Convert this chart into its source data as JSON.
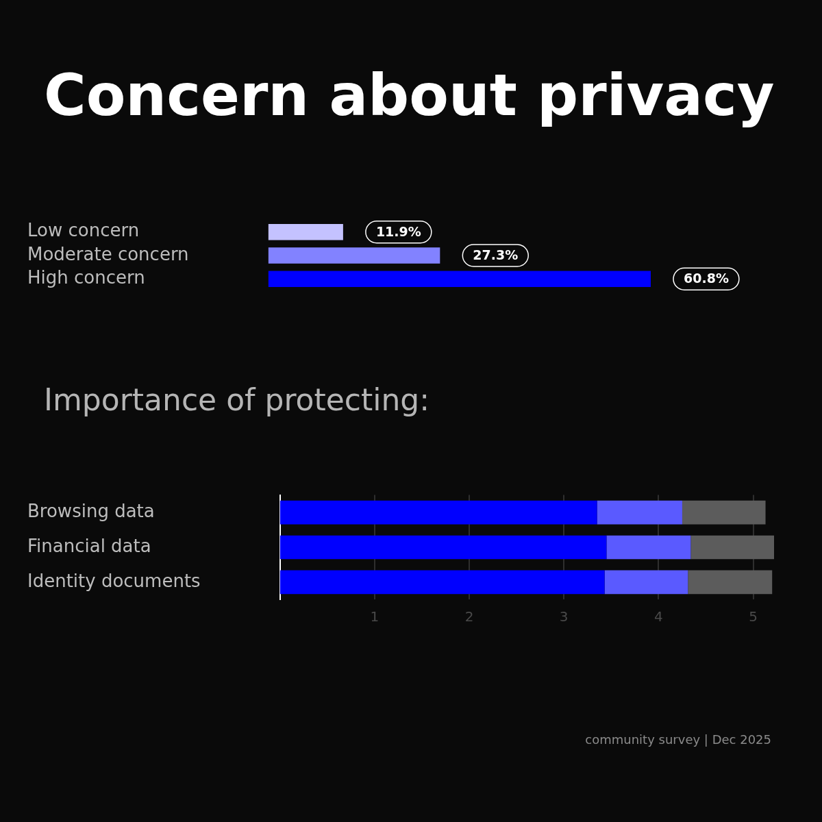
{
  "chart_data": [
    {
      "type": "bar",
      "title": "Concern about privacy",
      "orientation": "horizontal",
      "tick_labels": "y",
      "categories": [
        "Low concern",
        "Moderate concern",
        "High concern"
      ],
      "values": [
        11.9,
        27.3,
        60.8
      ],
      "colors": [
        "#c4c2ff",
        "#8282ff",
        "#0000ff"
      ],
      "value_labels": [
        "11.9%",
        "27.3%",
        "60.8%"
      ],
      "grid": false,
      "legend": false
    },
    {
      "type": "bar",
      "title": "Importance of protecting:",
      "orientation": "horizontal",
      "stacked": true,
      "categories": [
        "Browsing data",
        "Financial data",
        "Identity documents"
      ],
      "series": [
        {
          "color": "#0000ff",
          "values": [
            3.35,
            3.45,
            3.43
          ]
        },
        {
          "color": "#5a5aff",
          "values": [
            0.9,
            0.89,
            0.88
          ]
        },
        {
          "color": "#5c5c5c",
          "values": [
            0.88,
            0.88,
            0.89
          ]
        }
      ],
      "xlim": [
        0,
        5.22
      ],
      "xticks": [
        1,
        2,
        3,
        4,
        5
      ],
      "grid": "x",
      "legend": false,
      "tick_labels": "x",
      "annotations": [
        "community survey | Dec 2025"
      ]
    }
  ]
}
